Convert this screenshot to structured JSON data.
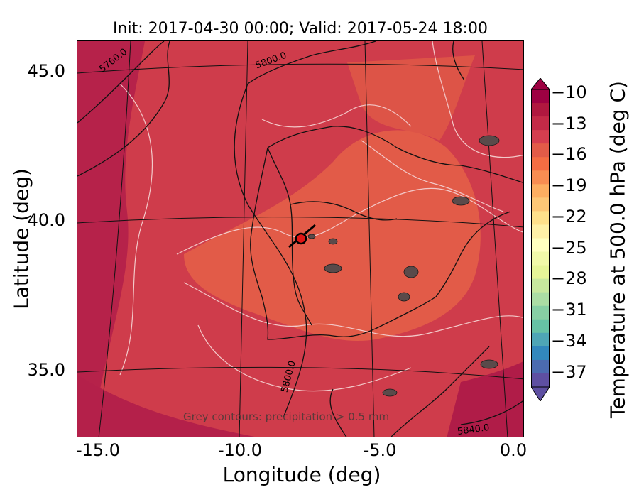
{
  "title": "Init: 2017-04-30 00:00; Valid: 2017-05-24 18:00",
  "axes": {
    "x_title": "Longitude (deg)",
    "y_title": "Latitude (deg)",
    "x_ticks": [
      "-15.0",
      "-10.0",
      "-5.0",
      "0.0"
    ],
    "y_ticks": [
      "45.0",
      "40.0",
      "35.0"
    ]
  },
  "colorbar": {
    "title": "Temperature at 500.0 hPa (deg C)",
    "ticks": [
      "−10",
      "−13",
      "−16",
      "−19",
      "−22",
      "−25",
      "−28",
      "−31",
      "−34",
      "−37"
    ],
    "colors": [
      "#9e0142",
      "#b0183f",
      "#c42a47",
      "#d53e4f",
      "#e25b48",
      "#f46d43",
      "#f88d52",
      "#fdae61",
      "#fdc776",
      "#fee08b",
      "#fef0a7",
      "#ffffbf",
      "#f1f9a9",
      "#e6f598",
      "#c7e89e",
      "#abdda4",
      "#87cfa4",
      "#66c2a5",
      "#4ea6b6",
      "#3288bd",
      "#4b6bb0",
      "#5e4fa2"
    ]
  },
  "contour_labels": [
    "5760.0",
    "5800.0",
    "5800.0",
    "5840.0"
  ],
  "note": "Grey contours: precipitation > 0.5 mm",
  "map_colors": {
    "ocean_warm": "#c42a47",
    "land_warm": "#d94a48",
    "core_warm": "#e5603f",
    "cold_edge": "#b6224a"
  }
}
